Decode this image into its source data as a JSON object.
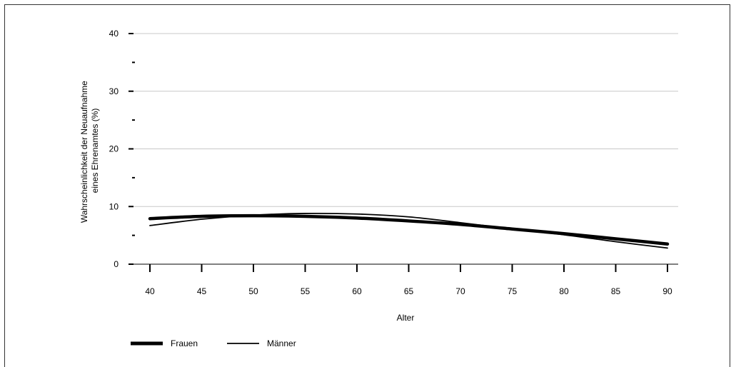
{
  "chart_data": {
    "type": "line",
    "xlabel": "Alter",
    "ylabel_lines": [
      "Wahrscheinlichkeit der Neuaufnahme",
      "eines Ehrenamtes (%)"
    ],
    "x": [
      40,
      45,
      50,
      55,
      60,
      65,
      70,
      75,
      80,
      85,
      90
    ],
    "xticks": [
      40,
      45,
      50,
      55,
      60,
      65,
      70,
      75,
      80,
      85,
      90
    ],
    "xlim": [
      40,
      90
    ],
    "yticks": [
      0,
      10,
      20,
      30,
      40
    ],
    "ylim": [
      0,
      40
    ],
    "grid": true,
    "legend_position": "bottom-left",
    "series": [
      {
        "name": "Frauen",
        "style": "thick",
        "values": [
          7.9,
          8.3,
          8.4,
          8.3,
          8.0,
          7.5,
          6.9,
          6.1,
          5.3,
          4.4,
          3.5
        ]
      },
      {
        "name": "Männer",
        "style": "thin",
        "values": [
          6.7,
          7.8,
          8.5,
          8.8,
          8.7,
          8.2,
          7.2,
          6.1,
          5.1,
          3.9,
          2.8
        ]
      }
    ]
  }
}
